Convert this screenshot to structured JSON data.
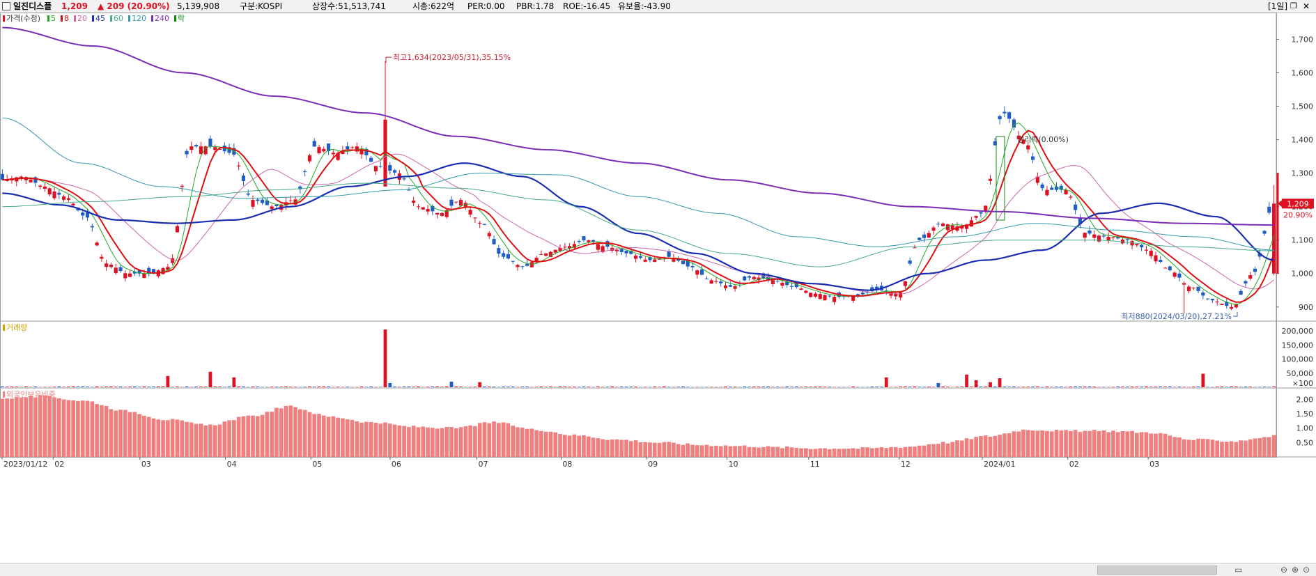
{
  "header": {
    "name": "일진디스플",
    "price": "1,209",
    "change": "▲ 209 (20.90%)",
    "volume": "5,139,908",
    "market": "구분:KOSPI",
    "shares": "상장수:51,513,741",
    "mcap": "시총:622억",
    "per": "PER:0.00",
    "pbr": "PBR:1.78",
    "roe": "ROE:-16.45",
    "float": "유보율:-43.90",
    "period": "[1일]"
  },
  "legend": {
    "price": "가격(수정)",
    "ma": [
      {
        "label": "5",
        "color": "#22aa22"
      },
      {
        "label": "8",
        "color": "#dd1111"
      },
      {
        "label": "20",
        "color": "#cc66aa"
      },
      {
        "label": "45",
        "color": "#1a2eb0"
      },
      {
        "label": "60",
        "color": "#44aa88"
      },
      {
        "label": "120",
        "color": "#3399aa"
      },
      {
        "label": "240",
        "color": "#7a2db5"
      },
      {
        "label": "락",
        "color": "#118811"
      }
    ],
    "volume": "거래량",
    "foreign": "외국인보유비중"
  },
  "annotations": {
    "high": "최고1,634(2023/05/31),35.15%",
    "low": "최저880(2024/03/20),27.21%",
    "lock": "권리락(0.00%)"
  },
  "colors": {
    "up": "#dd1122",
    "down": "#1f5fc4",
    "foreign": "#f08080"
  },
  "chart_data": [
    {
      "type": "candlestick",
      "title": "",
      "ylim": [
        860,
        1780
      ],
      "y_ticks": [
        "1,700",
        "1,600",
        "1,500",
        "1,400",
        "1,300",
        "1,200",
        "1,100",
        "1,000",
        "900"
      ],
      "x_ticks": [
        "2023/01/12",
        "02",
        "03",
        "04",
        "05",
        "06",
        "07",
        "08",
        "09",
        "10",
        "11",
        "12",
        "2024/01",
        "02",
        "03"
      ],
      "last_price_label": "1,209",
      "last_change_label": "20.90%",
      "high": {
        "value": 1634,
        "date": "2023/05/31"
      },
      "low": {
        "value": 880,
        "date": "2024/03/20"
      },
      "close_keypoints": [
        1280,
        1290,
        1260,
        1230,
        1170,
        1030,
        1000,
        1000,
        1020,
        1380,
        1380,
        1360,
        1220,
        1200,
        1220,
        1380,
        1360,
        1380,
        1320,
        1300,
        1200,
        1180,
        1220,
        1150,
        1050,
        1020,
        1060,
        1080,
        1100,
        1080,
        1060,
        1040,
        1050,
        1020,
        980,
        960,
        990,
        980,
        960,
        940,
        930,
        935,
        950,
        940,
        1100,
        1150,
        1140,
        1180,
        1480,
        1400,
        1250,
        1250,
        1120,
        1110,
        1100,
        1070,
        1010,
        960,
        920,
        900,
        1000,
        1209
      ],
      "ma_series": [
        {
          "name": "45",
          "values": [
            1240,
            1205,
            1160,
            1150,
            1160,
            1200,
            1260,
            1290,
            1330,
            1290,
            1200,
            1120,
            1060,
            1000,
            970,
            950,
            1000,
            1040,
            1070,
            1180,
            1210,
            1170,
            1040
          ]
        },
        {
          "name": "240",
          "values": [
            1735,
            1680,
            1600,
            1530,
            1480,
            1410,
            1370,
            1330,
            1280,
            1240,
            1200,
            1185,
            1165,
            1150,
            1145
          ]
        },
        {
          "name": "120",
          "values": [
            1465,
            1330,
            1260,
            1225,
            1230,
            1250,
            1300,
            1295,
            1230,
            1180,
            1110,
            1080,
            1110,
            1150,
            1130,
            1110,
            1070
          ]
        },
        {
          "name": "60",
          "values": [
            1200,
            1215,
            1230,
            1250,
            1270,
            1255,
            1220,
            1130,
            1060,
            1020,
            1080,
            1100,
            1100,
            1080,
            1068
          ]
        }
      ]
    },
    {
      "type": "bar",
      "title": "",
      "y_ticks": [
        "200,000",
        "150,000",
        "100,000",
        "50,000",
        "×100"
      ],
      "ylim": [
        0,
        225000
      ],
      "spikes": [
        {
          "pos": 0.13,
          "value": 40000
        },
        {
          "pos": 0.165,
          "value": 55000
        },
        {
          "pos": 0.183,
          "value": 35000
        },
        {
          "pos": 0.3,
          "value": 205000
        },
        {
          "pos": 0.305,
          "value": 15000
        },
        {
          "pos": 0.355,
          "value": 20000
        },
        {
          "pos": 0.374,
          "value": 18000
        },
        {
          "pos": 0.695,
          "value": 35000
        },
        {
          "pos": 0.737,
          "value": 15000
        },
        {
          "pos": 0.759,
          "value": 45000
        },
        {
          "pos": 0.764,
          "value": 25000
        },
        {
          "pos": 0.776,
          "value": 18000
        },
        {
          "pos": 0.785,
          "value": 32000
        },
        {
          "pos": 0.945,
          "value": 48000
        }
      ]
    },
    {
      "type": "bar",
      "title": "",
      "y_ticks": [
        "2.00",
        "1.50",
        "1.00",
        "0.50"
      ],
      "ylim": [
        0,
        2.3
      ],
      "keypoints": [
        2.05,
        2.1,
        1.95,
        1.6,
        1.3,
        1.1,
        1.4,
        1.75,
        1.4,
        1.2,
        1.05,
        1.0,
        1.2,
        0.95,
        0.75,
        0.6,
        0.5,
        0.42,
        0.38,
        0.33,
        0.3,
        0.3,
        0.35,
        0.5,
        0.72,
        0.95,
        0.9,
        0.9,
        0.85,
        0.6,
        0.55,
        0.72
      ]
    }
  ]
}
